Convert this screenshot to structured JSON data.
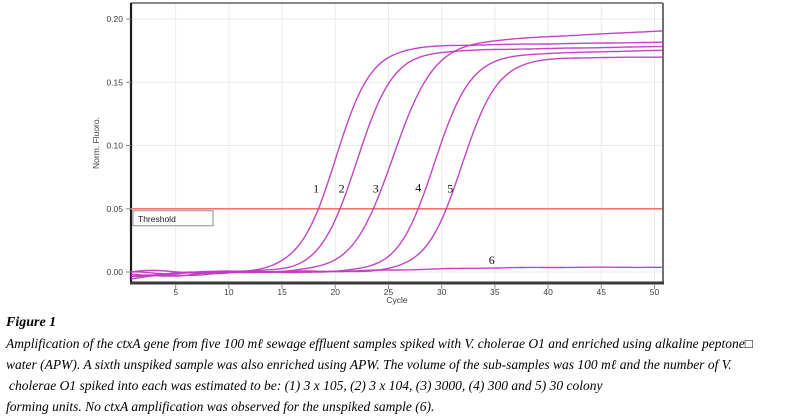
{
  "chart_data": {
    "type": "line",
    "title": "",
    "xlabel": "Cycle",
    "ylabel": "Norm. Fluoro.",
    "xlim": [
      0.8,
      50.8
    ],
    "ylim": [
      -0.0087,
      0.2127
    ],
    "x_ticks": [
      5,
      10,
      15,
      20,
      25,
      30,
      35,
      40,
      45,
      50
    ],
    "y_ticks": [
      {
        "v": 0.0,
        "label": "0.00"
      },
      {
        "v": 0.05,
        "label": "0.05"
      },
      {
        "v": 0.1,
        "label": "0.10"
      },
      {
        "v": 0.15,
        "label": "0.15"
      },
      {
        "v": 0.2,
        "label": "0.20"
      }
    ],
    "grid": true,
    "legend_position": "none",
    "colors": {
      "curve": "#c23ac2",
      "threshold_line": "#f3736b",
      "grid": "#ebebeb",
      "axis_left_bottom": "#1c1c1c",
      "frame_top_right": "#606060",
      "tick": "#8a8a8a",
      "tick_text": "#3c3c3c",
      "curve_label_text": "#111111"
    },
    "threshold": {
      "value": 0.05,
      "label": "Threshold"
    },
    "series": [
      {
        "name": "1",
        "ct_cycle": 18.4,
        "midpoint": 20.0,
        "steepness": 1.7,
        "plateau": 0.178,
        "end_drift": 0.00012,
        "baseline_offset": -0.0045,
        "end_value": 0.182,
        "label": {
          "text": "1",
          "cycle": 18.2,
          "value": 0.066
        }
      },
      {
        "name": "2",
        "ct_cycle": 20.4,
        "midpoint": 22.0,
        "steepness": 1.7,
        "plateau": 0.174,
        "end_drift": 0.00015,
        "baseline_offset": -0.002,
        "end_value": 0.178,
        "label": {
          "text": "2",
          "cycle": 20.6,
          "value": 0.066
        }
      },
      {
        "name": "3",
        "ct_cycle": 23.6,
        "midpoint": 25.4,
        "steepness": 1.9,
        "plateau": 0.18,
        "end_drift": 0.00042,
        "baseline_offset": -0.005,
        "end_value": 0.19,
        "label": {
          "text": "3",
          "cycle": 23.8,
          "value": 0.066
        }
      },
      {
        "name": "4",
        "ct_cycle": 27.7,
        "midpoint": 29.3,
        "steepness": 1.7,
        "plateau": 0.171,
        "end_drift": 0.0002,
        "baseline_offset": -0.001,
        "end_value": 0.175,
        "label": {
          "text": "4",
          "cycle": 27.8,
          "value": 0.067
        }
      },
      {
        "name": "5",
        "ct_cycle": 30.3,
        "midpoint": 31.9,
        "steepness": 1.7,
        "plateau": 0.169,
        "end_drift": 5e-05,
        "baseline_offset": -0.003,
        "end_value": 0.17,
        "label": {
          "text": "5",
          "cycle": 30.8,
          "value": 0.066
        }
      },
      {
        "name": "6",
        "ct_cycle": null,
        "midpoint": 28.0,
        "steepness": 5.0,
        "plateau": 0.0042,
        "end_drift": -2e-05,
        "baseline_offset": 0.0005,
        "end_value": 0.003,
        "label": {
          "text": "6",
          "cycle": 34.7,
          "value": 0.0095
        }
      }
    ]
  },
  "caption": {
    "title": "Figure 1",
    "lines": [
      "Amplification of the ctxA gene from five 100 mℓ sewage effluent samples spiked with V. cholerae O1 and enriched using alkaline peptone□",
      "water (APW). A sixth unspiked sample was also enriched using APW. The volume of the sub-samples was 100 mℓ and the number of V.",
      "cholerae O1 spiked into each was estimated to be: (1) 3 x 105, (2) 3 x 104, (3) 3000, (4) 300 and 5) 30 colony",
      "forming units. No ctxA amplification was observed for the unspiked sample (6)."
    ]
  }
}
